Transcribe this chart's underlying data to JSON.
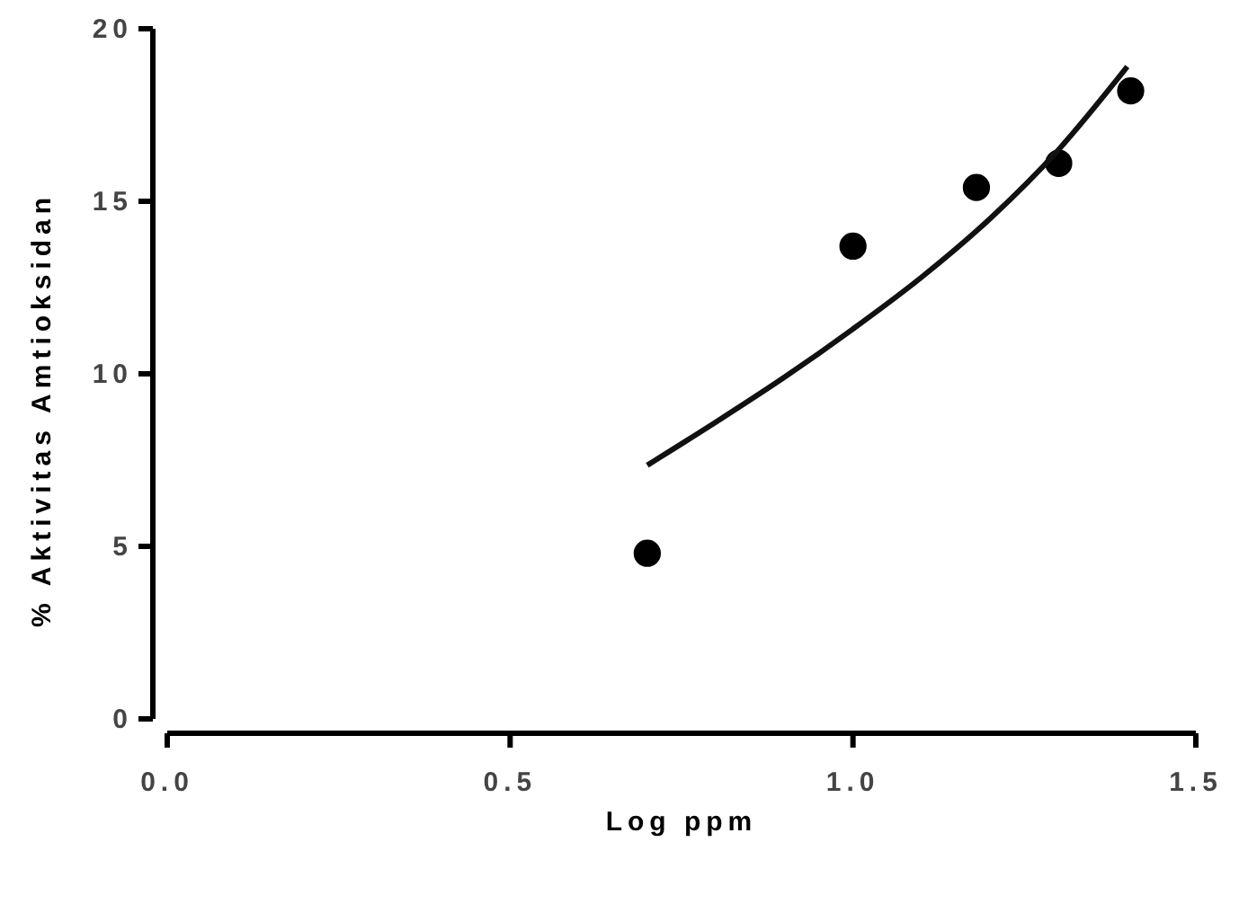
{
  "chart_data": {
    "type": "scatter",
    "xlabel": "Log ppm",
    "ylabel": "% Aktivitas Amtioksidan",
    "xlim": [
      0,
      1.5
    ],
    "ylim": [
      0,
      20
    ],
    "xticks": [
      {
        "value": 0,
        "label": "0.0"
      },
      0.5,
      {
        "value": 1,
        "label": "1.0"
      },
      1.5
    ],
    "yticks": [
      0,
      5,
      10,
      15,
      20
    ],
    "grid": false,
    "series": [
      {
        "color": "#000000",
        "marker": "circle",
        "x": [
          0.7,
          1.0,
          1.18,
          1.3,
          1.405
        ],
        "values": [
          4.8,
          13.7,
          15.4,
          16.1,
          18.2
        ]
      },
      {
        "type": "line",
        "color": "#111111",
        "marker": "none",
        "line_style": "solid",
        "x": [
          0.7,
          0.8,
          0.9,
          1.0,
          1.1,
          1.2,
          1.3,
          1.4
        ],
        "values": [
          7.35,
          8.6,
          9.9,
          11.3,
          12.8,
          14.5,
          16.5,
          18.9
        ]
      }
    ]
  }
}
